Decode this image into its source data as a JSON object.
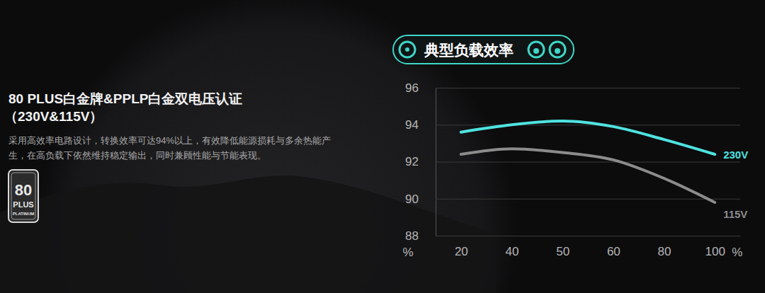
{
  "page": {
    "heading": [
      "80 PLUS白金牌&PPLP白金双电压认证",
      "（230V&115V）"
    ],
    "description": [
      "采用高效率电路设计，转换效率可达94%以上，有效降低能源损耗与多余热能产",
      "生，在高负载下依然维持稳定输出，同时兼顾性能与节能表现。"
    ],
    "badge": [
      "80",
      "PLUS",
      "PLATINUM"
    ]
  },
  "chart_data": {
    "type": "line",
    "title": "典型负载效率",
    "categories": [
      "20",
      "40",
      "50",
      "60",
      "80",
      "100"
    ],
    "x_label": "%",
    "y_label": "%",
    "series": [
      {
        "name": "230V",
        "color": "#4fe3e0",
        "values": [
          93.6,
          94.0,
          94.2,
          93.9,
          93.2,
          92.4
        ]
      },
      {
        "name": "115V",
        "color": "#8c8c8c",
        "values": [
          92.4,
          92.7,
          92.5,
          92.1,
          91.1,
          89.8
        ]
      }
    ],
    "ylim": [
      88,
      96
    ],
    "yticks": [
      88,
      90,
      92,
      94,
      96
    ],
    "grid": true
  }
}
